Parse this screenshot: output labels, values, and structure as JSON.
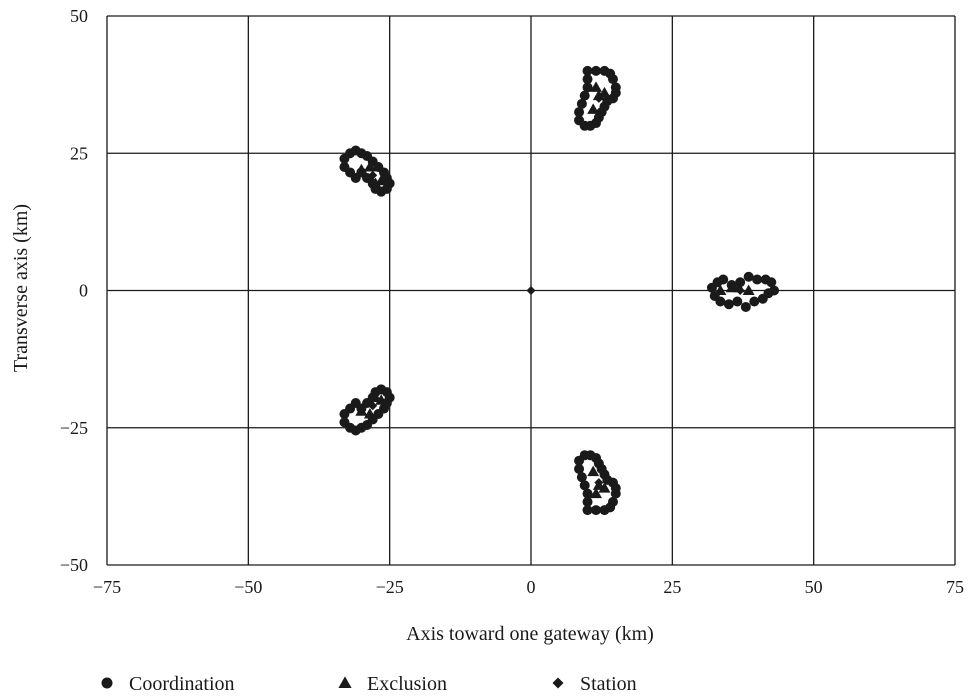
{
  "chart_data": {
    "type": "scatter",
    "title": "",
    "xlabel": "Axis toward one gateway (km)",
    "ylabel": "Transverse axis (km)",
    "xlim": [
      -75,
      75
    ],
    "ylim": [
      -50,
      50
    ],
    "xticks": [
      -75,
      -50,
      -25,
      0,
      25,
      50,
      75
    ],
    "yticks": [
      -50,
      -25,
      0,
      25,
      50
    ],
    "xtick_labels": [
      "−75",
      "−50",
      "−25",
      "0",
      "25",
      "50",
      "75"
    ],
    "ytick_labels": [
      "−50",
      "−25",
      "0",
      "25",
      "50"
    ],
    "grid": true,
    "legend_position": "bottom",
    "colors": {
      "marker": "#1a1a1a",
      "grid": "#1a1a1a",
      "background": "#ffffff"
    },
    "series": [
      {
        "name": "Coordination",
        "marker": "circle",
        "points": [
          [
            10,
            40
          ],
          [
            11.5,
            40
          ],
          [
            13,
            40
          ],
          [
            14,
            39.5
          ],
          [
            14.5,
            38.5
          ],
          [
            15,
            37
          ],
          [
            15,
            36
          ],
          [
            14.5,
            35
          ],
          [
            13.5,
            34.5
          ],
          [
            13,
            33.5
          ],
          [
            12.5,
            32.5
          ],
          [
            12,
            31.5
          ],
          [
            11.5,
            30.5
          ],
          [
            10.5,
            30
          ],
          [
            9.5,
            30
          ],
          [
            8.5,
            31
          ],
          [
            8.5,
            32.5
          ],
          [
            9,
            34
          ],
          [
            9.5,
            35.5
          ],
          [
            10,
            37
          ],
          [
            10,
            38.5
          ],
          [
            -33,
            24
          ],
          [
            -32,
            25
          ],
          [
            -31,
            25.5
          ],
          [
            -30,
            25
          ],
          [
            -29,
            24.5
          ],
          [
            -28,
            23.5
          ],
          [
            -27,
            22.5
          ],
          [
            -26,
            21.5
          ],
          [
            -25.5,
            20.5
          ],
          [
            -25,
            19.5
          ],
          [
            -25.5,
            18.5
          ],
          [
            -26.5,
            18
          ],
          [
            -27.5,
            18.5
          ],
          [
            -28,
            19.5
          ],
          [
            -29,
            20.5
          ],
          [
            -30,
            21.5
          ],
          [
            -31,
            20.5
          ],
          [
            -32,
            21.5
          ],
          [
            -33,
            22.5
          ],
          [
            32,
            0.5
          ],
          [
            32.5,
            -1
          ],
          [
            33.5,
            -2
          ],
          [
            35,
            -2.5
          ],
          [
            36.5,
            -2
          ],
          [
            38,
            -3
          ],
          [
            39.5,
            -2
          ],
          [
            41,
            -1.5
          ],
          [
            42,
            -0.5
          ],
          [
            43,
            0
          ],
          [
            42.5,
            1.5
          ],
          [
            41.5,
            2
          ],
          [
            40,
            2
          ],
          [
            38.5,
            2.5
          ],
          [
            37,
            1.5
          ],
          [
            35.5,
            1
          ],
          [
            34,
            2
          ],
          [
            33,
            1.5
          ],
          [
            -33,
            -24
          ],
          [
            -32,
            -25
          ],
          [
            -31,
            -25.5
          ],
          [
            -30,
            -25
          ],
          [
            -29,
            -24.5
          ],
          [
            -28,
            -23.5
          ],
          [
            -27,
            -22.5
          ],
          [
            -26,
            -21.5
          ],
          [
            -25.5,
            -20.5
          ],
          [
            -25,
            -19.5
          ],
          [
            -25.5,
            -18.5
          ],
          [
            -26.5,
            -18
          ],
          [
            -27.5,
            -18.5
          ],
          [
            -28,
            -19.5
          ],
          [
            -29,
            -20.5
          ],
          [
            -30,
            -21.5
          ],
          [
            -31,
            -20.5
          ],
          [
            -32,
            -21.5
          ],
          [
            -33,
            -22.5
          ],
          [
            10,
            -40
          ],
          [
            11.5,
            -40
          ],
          [
            13,
            -40
          ],
          [
            14,
            -39.5
          ],
          [
            14.5,
            -38.5
          ],
          [
            15,
            -37
          ],
          [
            15,
            -36
          ],
          [
            14.5,
            -35
          ],
          [
            13.5,
            -34.5
          ],
          [
            13,
            -33.5
          ],
          [
            12.5,
            -32.5
          ],
          [
            12,
            -31.5
          ],
          [
            11.5,
            -30.5
          ],
          [
            10.5,
            -30
          ],
          [
            9.5,
            -30
          ],
          [
            8.5,
            -31
          ],
          [
            8.5,
            -32.5
          ],
          [
            9,
            -34
          ],
          [
            9.5,
            -35.5
          ],
          [
            10,
            -37
          ],
          [
            10,
            -38.5
          ]
        ]
      },
      {
        "name": "Exclusion",
        "marker": "triangle",
        "points": [
          [
            11,
            33
          ],
          [
            12,
            35.5
          ],
          [
            13,
            36
          ],
          [
            11.5,
            37
          ],
          [
            -30,
            22
          ],
          [
            -28.5,
            22.5
          ],
          [
            -26.5,
            20
          ],
          [
            -27.5,
            19.5
          ],
          [
            33.5,
            0
          ],
          [
            35.5,
            0.5
          ],
          [
            36.8,
            0.5
          ],
          [
            38.5,
            0
          ],
          [
            -30,
            -22
          ],
          [
            -28.5,
            -22.5
          ],
          [
            -26.5,
            -20
          ],
          [
            -27.5,
            -19.5
          ],
          [
            11,
            -33
          ],
          [
            12,
            -35.5
          ],
          [
            13,
            -36
          ],
          [
            11.5,
            -37
          ]
        ]
      },
      {
        "name": "Station",
        "marker": "diamond",
        "points": [
          [
            0,
            0
          ],
          [
            12,
            35
          ],
          [
            -28,
            21
          ],
          [
            37,
            0
          ],
          [
            -28,
            -21
          ],
          [
            12,
            -35
          ]
        ]
      }
    ]
  }
}
